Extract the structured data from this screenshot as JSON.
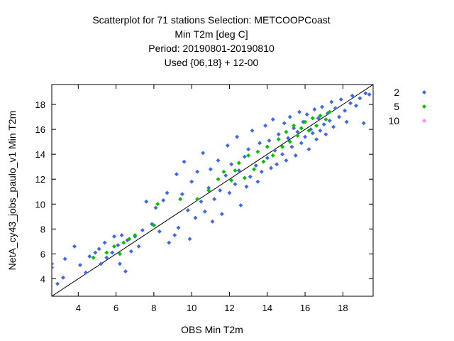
{
  "chart_data": {
    "type": "scatter",
    "title_lines": [
      "Scatterplot for   71 stations Selection: METCOOPCoast",
      "Min T2m [deg C]",
      "Period: 20190801-20190810",
      "Used {06,18} + 12-00"
    ],
    "xlabel": "OBS Min T2m",
    "ylabel": "NetA_cy43_jobs_paulo_v1 Min T2m",
    "xlim": [
      2.6,
      19.6
    ],
    "ylim": [
      2.6,
      19.6
    ],
    "xticks": [
      4,
      6,
      8,
      10,
      12,
      14,
      16,
      18
    ],
    "yticks": [
      4,
      6,
      8,
      10,
      12,
      14,
      16,
      18
    ],
    "grid": false,
    "diagonal_reference_line": true,
    "legend_position": "right",
    "series": [
      {
        "name": "2",
        "color": "#4169e1",
        "marker": "diamond",
        "points": [
          [
            2.6,
            5.2
          ],
          [
            2.6,
            4.9
          ],
          [
            2.9,
            3.6
          ],
          [
            3.2,
            4.1
          ],
          [
            3.3,
            5.6
          ],
          [
            3.8,
            6.6
          ],
          [
            4.1,
            5.1
          ],
          [
            4.4,
            4.5
          ],
          [
            4.6,
            5.8
          ],
          [
            4.9,
            6.1
          ],
          [
            5.1,
            6.4
          ],
          [
            5.2,
            5.2
          ],
          [
            5.4,
            6.9
          ],
          [
            5.5,
            5.7
          ],
          [
            5.8,
            6.1
          ],
          [
            5.9,
            7.4
          ],
          [
            6.1,
            6.7
          ],
          [
            6.2,
            5.2
          ],
          [
            6.3,
            7.5
          ],
          [
            6.5,
            4.6
          ],
          [
            6.6,
            7.1
          ],
          [
            6.8,
            6.2
          ],
          [
            7.0,
            7.4
          ],
          [
            7.2,
            6.6
          ],
          [
            7.4,
            7.9
          ],
          [
            7.6,
            10.2
          ],
          [
            7.9,
            8.4
          ],
          [
            8.1,
            9.7
          ],
          [
            8.3,
            7.8
          ],
          [
            8.5,
            10.3
          ],
          [
            8.7,
            10.9
          ],
          [
            8.8,
            6.9
          ],
          [
            9.1,
            7.5
          ],
          [
            9.2,
            12.4
          ],
          [
            9.3,
            8.1
          ],
          [
            9.5,
            10.8
          ],
          [
            9.6,
            13.4
          ],
          [
            9.8,
            9.5
          ],
          [
            9.9,
            7.2
          ],
          [
            10.0,
            11.8
          ],
          [
            10.2,
            8.9
          ],
          [
            10.3,
            12.6
          ],
          [
            10.5,
            10.2
          ],
          [
            10.6,
            14.1
          ],
          [
            10.7,
            9.4
          ],
          [
            10.9,
            11.3
          ],
          [
            11.0,
            12.8
          ],
          [
            11.1,
            8.6
          ],
          [
            11.2,
            10.4
          ],
          [
            11.4,
            13.5
          ],
          [
            11.5,
            11.1
          ],
          [
            11.6,
            9.2
          ],
          [
            11.8,
            12.3
          ],
          [
            11.9,
            14.7
          ],
          [
            12.0,
            10.9
          ],
          [
            12.1,
            13.2
          ],
          [
            12.3,
            11.6
          ],
          [
            12.4,
            15.4
          ],
          [
            12.5,
            12.7
          ],
          [
            12.6,
            9.9
          ],
          [
            12.8,
            13.8
          ],
          [
            12.9,
            11.4
          ],
          [
            13.0,
            14.4
          ],
          [
            13.1,
            12.2
          ],
          [
            13.2,
            15.9
          ],
          [
            13.4,
            13.1
          ],
          [
            13.5,
            11.8
          ],
          [
            13.6,
            14.9
          ],
          [
            13.7,
            12.6
          ],
          [
            13.9,
            16.3
          ],
          [
            14.0,
            13.7
          ],
          [
            14.1,
            15.1
          ],
          [
            14.2,
            12.9
          ],
          [
            14.3,
            16.8
          ],
          [
            14.4,
            14.3
          ],
          [
            14.5,
            13.2
          ],
          [
            14.6,
            15.6
          ],
          [
            14.8,
            14.0
          ],
          [
            14.9,
            16.5
          ],
          [
            15.0,
            13.5
          ],
          [
            15.1,
            15.3
          ],
          [
            15.2,
            17.0
          ],
          [
            15.3,
            14.6
          ],
          [
            15.4,
            16.1
          ],
          [
            15.5,
            13.9
          ],
          [
            15.6,
            15.8
          ],
          [
            15.7,
            17.4
          ],
          [
            15.8,
            14.9
          ],
          [
            15.9,
            16.6
          ],
          [
            16.0,
            15.4
          ],
          [
            16.1,
            17.2
          ],
          [
            16.2,
            14.4
          ],
          [
            16.3,
            16.0
          ],
          [
            16.4,
            15.7
          ],
          [
            16.5,
            17.6
          ],
          [
            16.6,
            15.2
          ],
          [
            16.7,
            16.9
          ],
          [
            16.8,
            15.9
          ],
          [
            16.9,
            17.8
          ],
          [
            17.0,
            16.4
          ],
          [
            17.1,
            15.6
          ],
          [
            17.2,
            17.3
          ],
          [
            17.3,
            16.7
          ],
          [
            17.4,
            18.2
          ],
          [
            17.5,
            16.2
          ],
          [
            17.6,
            17.7
          ],
          [
            17.8,
            17.0
          ],
          [
            17.9,
            18.4
          ],
          [
            18.1,
            17.5
          ],
          [
            18.2,
            16.6
          ],
          [
            18.4,
            18.1
          ],
          [
            18.5,
            18.7
          ],
          [
            18.7,
            17.9
          ],
          [
            18.9,
            18.5
          ],
          [
            19.1,
            16.5
          ],
          [
            19.2,
            18.9
          ],
          [
            19.4,
            18.8
          ]
        ]
      },
      {
        "name": "5",
        "color": "#00c000",
        "marker": "diamond",
        "points": [
          [
            4.8,
            5.7
          ],
          [
            5.5,
            6.1
          ],
          [
            5.9,
            6.6
          ],
          [
            6.2,
            6.0
          ],
          [
            6.4,
            6.9
          ],
          [
            6.7,
            7.2
          ],
          [
            7.0,
            7.5
          ],
          [
            8.0,
            8.3
          ],
          [
            8.2,
            10.0
          ],
          [
            9.4,
            10.4
          ],
          [
            10.3,
            10.4
          ],
          [
            10.9,
            11.1
          ],
          [
            11.4,
            12.0
          ],
          [
            11.7,
            12.6
          ],
          [
            12.1,
            11.9
          ],
          [
            12.3,
            12.7
          ],
          [
            12.5,
            13.3
          ],
          [
            12.8,
            12.1
          ],
          [
            13.0,
            13.9
          ],
          [
            13.3,
            12.8
          ],
          [
            13.5,
            14.2
          ],
          [
            13.8,
            13.4
          ],
          [
            14.0,
            14.6
          ],
          [
            14.3,
            13.9
          ],
          [
            14.6,
            15.2
          ],
          [
            14.8,
            14.6
          ],
          [
            15.0,
            15.8
          ],
          [
            15.2,
            15.0
          ],
          [
            15.4,
            16.3
          ],
          [
            15.6,
            15.5
          ],
          [
            15.8,
            16.1
          ],
          [
            16.0,
            16.6
          ],
          [
            16.2,
            15.9
          ],
          [
            16.4,
            16.9
          ],
          [
            16.6,
            16.3
          ],
          [
            16.8,
            17.1
          ],
          [
            17.1,
            16.8
          ],
          [
            17.3,
            17.4
          ]
        ]
      },
      {
        "name": "10",
        "color": "#ff88ff",
        "marker": "diamond",
        "points": []
      }
    ]
  }
}
